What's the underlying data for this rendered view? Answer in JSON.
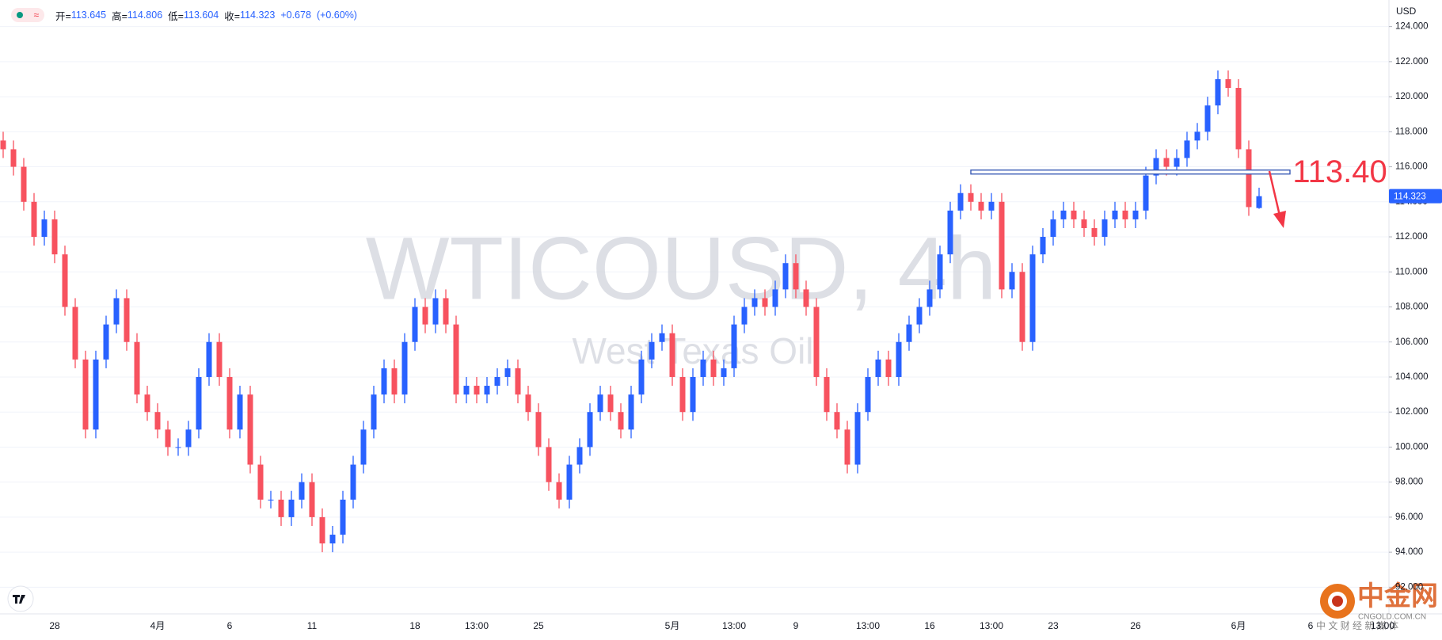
{
  "chart_data": {
    "type": "candlestick",
    "currency": "USD",
    "watermark": {
      "symbol": "WTICOUSD, 4h",
      "name": "West Texas Oil"
    },
    "legend": {
      "open": "开=",
      "high": "高=",
      "low": "低=",
      "close": "收=",
      "change": "+0.678",
      "change_pct": "(+0.60%)"
    },
    "annotation": "113.40",
    "level_line": 115.7,
    "up_color": "#2962ff",
    "down_color": "#f7525f",
    "level_color": "#3a5bb5",
    "annotation_color": "#f23645",
    "grid": true,
    "source_logo": {
      "name": "中金网",
      "domain": "CNGOLD.COM.CN",
      "tagline": "中 文 财 经 新 媒 体"
    },
    "ylim": [
      90.48,
      125.52
    ],
    "yticks": [
      {
        "value": 92,
        "label": "92.000"
      },
      {
        "value": 94,
        "label": "94.000"
      },
      {
        "value": 96,
        "label": "96.000"
      },
      {
        "value": 98,
        "label": "98.000"
      },
      {
        "value": 100,
        "label": "100.000"
      },
      {
        "value": 102,
        "label": "102.000"
      },
      {
        "value": 104,
        "label": "104.000"
      },
      {
        "value": 106,
        "label": "106.000"
      },
      {
        "value": 108,
        "label": "108.000"
      },
      {
        "value": 110,
        "label": "110.000"
      },
      {
        "value": 112,
        "label": "112.000"
      },
      {
        "value": 114,
        "label": "114.000"
      },
      {
        "value": 116,
        "label": "116.000"
      },
      {
        "value": 118,
        "label": "118.000"
      },
      {
        "value": 120,
        "label": "120.000"
      },
      {
        "value": 122,
        "label": "122.000"
      },
      {
        "value": 124,
        "label": "124.000"
      }
    ],
    "categories": [
      null,
      null,
      null,
      null,
      null,
      "28",
      null,
      null,
      null,
      null,
      null,
      null,
      null,
      null,
      null,
      "4月",
      null,
      null,
      null,
      null,
      null,
      null,
      "6",
      null,
      null,
      null,
      null,
      null,
      null,
      null,
      "11",
      null,
      null,
      null,
      null,
      null,
      null,
      null,
      null,
      null,
      "18",
      null,
      null,
      null,
      null,
      null,
      "13:00",
      null,
      null,
      null,
      null,
      null,
      "25",
      null,
      null,
      null,
      null,
      null,
      null,
      null,
      null,
      null,
      null,
      null,
      null,
      "5月",
      null,
      null,
      null,
      null,
      null,
      "13:00",
      null,
      null,
      null,
      null,
      null,
      "9",
      null,
      null,
      null,
      null,
      null,
      null,
      "13:00",
      null,
      null,
      null,
      null,
      null,
      "16",
      null,
      null,
      null,
      null,
      null,
      "13:00",
      null,
      null,
      null,
      null,
      null,
      "23",
      null,
      null,
      null,
      null,
      null,
      null,
      null,
      "26",
      null,
      null,
      null,
      null,
      null,
      null,
      null,
      null,
      null,
      "6月",
      null,
      null,
      null,
      null,
      null,
      null,
      "6",
      null,
      null,
      null,
      null,
      null,
      null,
      "13:00"
    ],
    "open": [
      117.5,
      117,
      116,
      114,
      112,
      113,
      111,
      108,
      105,
      101,
      105,
      107,
      108.5,
      106,
      103,
      102,
      101,
      100,
      100,
      101,
      104,
      106,
      104,
      101,
      103,
      99,
      97,
      97,
      96,
      97,
      98,
      96,
      94.5,
      95,
      97,
      99,
      101,
      103,
      104.5,
      103,
      106,
      108,
      107,
      108.5,
      107,
      103,
      103.5,
      103,
      103.5,
      104,
      104.5,
      103,
      102,
      100,
      98,
      97,
      99,
      100,
      102,
      103,
      102,
      101,
      103,
      105,
      106,
      106.5,
      104,
      102,
      104,
      105,
      104,
      104.5,
      107,
      108,
      108.5,
      108,
      109,
      110.5,
      109,
      108,
      104,
      102,
      101,
      99,
      102,
      104,
      105,
      104,
      106,
      107,
      108,
      109,
      111,
      113.5,
      114.5,
      114,
      113.5,
      114,
      109,
      110,
      106,
      111,
      112,
      113,
      113.5,
      113,
      112.5,
      112,
      113,
      113.5,
      113,
      113.5,
      115.5,
      116.5,
      116,
      116.5,
      117.5,
      118,
      119.5,
      121,
      120.5,
      117,
      113.645,
      null,
      null,
      null,
      null,
      null,
      null,
      null,
      null,
      null,
      null,
      null,
      null
    ],
    "high": [
      118,
      117.5,
      116.5,
      114.5,
      113.5,
      113.5,
      111.5,
      108.5,
      105.5,
      105.5,
      107.5,
      109,
      109,
      106.5,
      103.5,
      102.5,
      101.5,
      100.5,
      101.5,
      104.5,
      106.5,
      106.5,
      104.5,
      103.5,
      103.5,
      99.5,
      97.5,
      97.5,
      97.5,
      98.5,
      98.5,
      96.5,
      95.5,
      97.5,
      99.5,
      101.5,
      103.5,
      105,
      105,
      106.5,
      108.5,
      108.5,
      109,
      109,
      107.5,
      104,
      104,
      104,
      104.5,
      105,
      105,
      103.5,
      102.5,
      100.5,
      98.5,
      99.5,
      100.5,
      102.5,
      103.5,
      103.5,
      102.5,
      103.5,
      105.5,
      106.5,
      107,
      107,
      104.5,
      104.5,
      105.5,
      105.5,
      105,
      107.5,
      108.5,
      109,
      109,
      109.5,
      111,
      111,
      109.5,
      108.5,
      104.5,
      102.5,
      101.5,
      102.5,
      104.5,
      105.5,
      105.5,
      106.5,
      107.5,
      108.5,
      109.5,
      111.5,
      114,
      115,
      115,
      114.5,
      114.5,
      114.5,
      110.5,
      110.5,
      111.5,
      112.5,
      113.5,
      114,
      114,
      113.5,
      113,
      113.5,
      114,
      114,
      114,
      116,
      117,
      117,
      117,
      118,
      118.5,
      120,
      121.5,
      121.5,
      121,
      117.5,
      114.806,
      null,
      null,
      null,
      null,
      null,
      null,
      null,
      null,
      null,
      null,
      null,
      null
    ],
    "low": [
      116.5,
      115.5,
      113.5,
      111.5,
      111.5,
      110.5,
      107.5,
      104.5,
      100.5,
      100.5,
      104.5,
      106.5,
      105.5,
      102.5,
      101.5,
      100.5,
      99.5,
      99.5,
      99.5,
      100.5,
      103.5,
      103.5,
      100.5,
      100.5,
      98.5,
      96.5,
      96.5,
      95.5,
      95.5,
      96.5,
      95.5,
      94,
      94,
      94.5,
      96.5,
      98.5,
      100.5,
      102.5,
      102.5,
      102.5,
      105.5,
      106.5,
      106.5,
      106.5,
      102.5,
      102.5,
      102.5,
      102.5,
      103,
      103.5,
      102.5,
      101.5,
      99.5,
      97.5,
      96.5,
      96.5,
      98.5,
      99.5,
      101.5,
      101.5,
      100.5,
      100.5,
      102.5,
      104.5,
      105.5,
      103.5,
      101.5,
      101.5,
      103.5,
      103.5,
      103.5,
      104,
      106.5,
      107.5,
      107.5,
      107.5,
      108.5,
      108.5,
      107.5,
      103.5,
      101.5,
      100.5,
      98.5,
      98.5,
      101.5,
      103.5,
      103.5,
      103.5,
      105.5,
      106.5,
      107.5,
      108.5,
      110.5,
      113,
      113.5,
      113,
      113,
      108.5,
      108.5,
      105.5,
      105.5,
      110.5,
      111.5,
      112.5,
      112.5,
      112,
      111.5,
      111.5,
      112.5,
      112.5,
      112.5,
      113,
      115,
      115.5,
      115.5,
      116,
      117,
      117.5,
      119,
      120,
      116.5,
      113.2,
      113.604,
      null,
      null,
      null,
      null,
      null,
      null,
      null,
      null,
      null,
      null,
      null,
      null
    ],
    "close": [
      117,
      116,
      114,
      112,
      113,
      111,
      108,
      105,
      101,
      105,
      107,
      108.5,
      106,
      103,
      102,
      101,
      100,
      100,
      101,
      104,
      106,
      104,
      101,
      103,
      99,
      97,
      97,
      96,
      97,
      98,
      96,
      94.5,
      95,
      97,
      99,
      101,
      103,
      104.5,
      103,
      106,
      108,
      107,
      108.5,
      107,
      103,
      103.5,
      103,
      103.5,
      104,
      104.5,
      103,
      102,
      100,
      98,
      97,
      99,
      100,
      102,
      103,
      102,
      101,
      103,
      105,
      106,
      106.5,
      104,
      102,
      104,
      105,
      104,
      104.5,
      107,
      108,
      108.5,
      108,
      109,
      110.5,
      109,
      108,
      104,
      102,
      101,
      99,
      102,
      104,
      105,
      104,
      106,
      107,
      108,
      109,
      111,
      113.5,
      114.5,
      114,
      113.5,
      114,
      109,
      110,
      106,
      111,
      112,
      113,
      113.5,
      113,
      112.5,
      112,
      113,
      113.5,
      113,
      113.5,
      115.5,
      116.5,
      116,
      116.5,
      117.5,
      118,
      119.5,
      121,
      120.5,
      117,
      113.7,
      114.323,
      null,
      null,
      null,
      null,
      null,
      null,
      null,
      null,
      null,
      null,
      null,
      null
    ]
  }
}
